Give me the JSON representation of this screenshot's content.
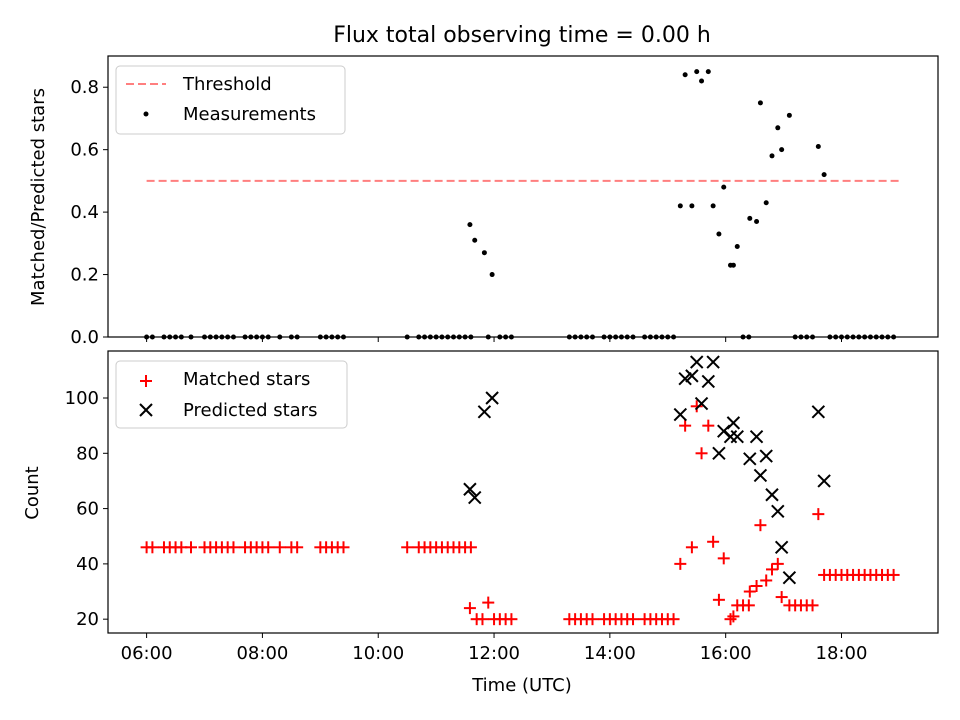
{
  "chart_data": [
    {
      "type": "scatter",
      "title": "Flux total observing time = 0.00 h",
      "xlabel": "",
      "ylabel": "Matched/Predicted stars",
      "xlim": [
        "05:20",
        "19:40"
      ],
      "ylim": [
        0,
        0.9
      ],
      "x_ticks": [
        "06:00",
        "08:00",
        "10:00",
        "12:00",
        "14:00",
        "16:00",
        "18:00"
      ],
      "y_ticks": [
        0,
        0.2,
        0.4,
        0.6,
        0.8
      ],
      "y_tick_labels": [
        "0.0",
        "0.2",
        "0.4",
        "0.6",
        "0.8"
      ],
      "legend_position": "top-left",
      "threshold": {
        "name": "Threshold",
        "value": 0.5,
        "x_range": [
          "06:00",
          "19:00"
        ],
        "color": "#ff7f7f",
        "style": "dashed"
      },
      "series": [
        {
          "name": "Measurements",
          "marker": "dot",
          "color": "#000000",
          "points": [
            [
              "06:00",
              0
            ],
            [
              "06:06",
              0
            ],
            [
              "06:18",
              0
            ],
            [
              "06:24",
              0
            ],
            [
              "06:30",
              0
            ],
            [
              "06:36",
              0
            ],
            [
              "06:46",
              0
            ],
            [
              "07:00",
              0
            ],
            [
              "07:06",
              0
            ],
            [
              "07:12",
              0
            ],
            [
              "07:18",
              0
            ],
            [
              "07:24",
              0
            ],
            [
              "07:30",
              0
            ],
            [
              "07:42",
              0
            ],
            [
              "07:48",
              0
            ],
            [
              "07:54",
              0
            ],
            [
              "08:00",
              0
            ],
            [
              "08:06",
              0
            ],
            [
              "08:18",
              0
            ],
            [
              "08:30",
              0
            ],
            [
              "08:36",
              0
            ],
            [
              "09:00",
              0
            ],
            [
              "09:06",
              0
            ],
            [
              "09:12",
              0
            ],
            [
              "09:18",
              0
            ],
            [
              "09:24",
              0
            ],
            [
              "10:30",
              0
            ],
            [
              "10:42",
              0
            ],
            [
              "10:48",
              0
            ],
            [
              "10:54",
              0
            ],
            [
              "11:00",
              0
            ],
            [
              "11:06",
              0
            ],
            [
              "11:12",
              0
            ],
            [
              "11:18",
              0
            ],
            [
              "11:24",
              0
            ],
            [
              "11:30",
              0
            ],
            [
              "11:36",
              0
            ],
            [
              "11:54",
              0
            ],
            [
              "12:06",
              0
            ],
            [
              "12:12",
              0
            ],
            [
              "12:18",
              0
            ],
            [
              "11:35",
              0.36
            ],
            [
              "11:40",
              0.31
            ],
            [
              "11:50",
              0.27
            ],
            [
              "11:58",
              0.2
            ],
            [
              "13:18",
              0
            ],
            [
              "13:24",
              0
            ],
            [
              "13:30",
              0
            ],
            [
              "13:36",
              0
            ],
            [
              "13:42",
              0
            ],
            [
              "13:54",
              0
            ],
            [
              "14:00",
              0
            ],
            [
              "14:06",
              0
            ],
            [
              "14:12",
              0
            ],
            [
              "14:18",
              0
            ],
            [
              "14:24",
              0
            ],
            [
              "14:36",
              0
            ],
            [
              "14:42",
              0
            ],
            [
              "14:48",
              0
            ],
            [
              "14:54",
              0
            ],
            [
              "15:00",
              0
            ],
            [
              "15:06",
              0
            ],
            [
              "15:13",
              0.42
            ],
            [
              "15:18",
              0.84
            ],
            [
              "15:25",
              0.42
            ],
            [
              "15:30",
              0.85
            ],
            [
              "15:35",
              0.82
            ],
            [
              "15:42",
              0.85
            ],
            [
              "15:47",
              0.42
            ],
            [
              "15:53",
              0.33
            ],
            [
              "15:58",
              0.48
            ],
            [
              "16:05",
              0.23
            ],
            [
              "16:08",
              0.23
            ],
            [
              "16:12",
              0.29
            ],
            [
              "16:18",
              0
            ],
            [
              "16:24",
              0
            ],
            [
              "16:25",
              0.38
            ],
            [
              "16:32",
              0.37
            ],
            [
              "16:36",
              0.75
            ],
            [
              "16:42",
              0.43
            ],
            [
              "16:48",
              0.58
            ],
            [
              "16:54",
              0.67
            ],
            [
              "16:58",
              0.6
            ],
            [
              "17:06",
              0.71
            ],
            [
              "17:12",
              0
            ],
            [
              "17:18",
              0
            ],
            [
              "17:24",
              0
            ],
            [
              "17:30",
              0
            ],
            [
              "17:36",
              0.61
            ],
            [
              "17:42",
              0.52
            ],
            [
              "17:48",
              0
            ],
            [
              "17:54",
              0
            ],
            [
              "18:00",
              0
            ],
            [
              "18:06",
              0
            ],
            [
              "18:12",
              0
            ],
            [
              "18:18",
              0
            ],
            [
              "18:24",
              0
            ],
            [
              "18:30",
              0
            ],
            [
              "18:36",
              0
            ],
            [
              "18:42",
              0
            ],
            [
              "18:48",
              0
            ],
            [
              "18:54",
              0
            ]
          ]
        }
      ]
    },
    {
      "type": "scatter",
      "title": "",
      "xlabel": "Time (UTC)",
      "ylabel": "Count",
      "xlim": [
        "05:20",
        "19:40"
      ],
      "ylim": [
        15,
        117
      ],
      "x_ticks": [
        "06:00",
        "08:00",
        "10:00",
        "12:00",
        "14:00",
        "16:00",
        "18:00"
      ],
      "y_ticks": [
        20,
        40,
        60,
        80,
        100
      ],
      "legend_position": "top-left",
      "series": [
        {
          "name": "Matched stars",
          "marker": "plus",
          "color": "#ff0000",
          "points": [
            [
              "06:00",
              46
            ],
            [
              "06:06",
              46
            ],
            [
              "06:18",
              46
            ],
            [
              "06:24",
              46
            ],
            [
              "06:30",
              46
            ],
            [
              "06:36",
              46
            ],
            [
              "06:46",
              46
            ],
            [
              "07:00",
              46
            ],
            [
              "07:06",
              46
            ],
            [
              "07:12",
              46
            ],
            [
              "07:18",
              46
            ],
            [
              "07:24",
              46
            ],
            [
              "07:30",
              46
            ],
            [
              "07:42",
              46
            ],
            [
              "07:48",
              46
            ],
            [
              "07:54",
              46
            ],
            [
              "08:00",
              46
            ],
            [
              "08:06",
              46
            ],
            [
              "08:18",
              46
            ],
            [
              "08:30",
              46
            ],
            [
              "08:36",
              46
            ],
            [
              "09:00",
              46
            ],
            [
              "09:06",
              46
            ],
            [
              "09:12",
              46
            ],
            [
              "09:18",
              46
            ],
            [
              "09:24",
              46
            ],
            [
              "10:30",
              46
            ],
            [
              "10:42",
              46
            ],
            [
              "10:48",
              46
            ],
            [
              "10:54",
              46
            ],
            [
              "11:00",
              46
            ],
            [
              "11:06",
              46
            ],
            [
              "11:12",
              46
            ],
            [
              "11:18",
              46
            ],
            [
              "11:24",
              46
            ],
            [
              "11:30",
              46
            ],
            [
              "11:36",
              46
            ],
            [
              "11:35",
              24
            ],
            [
              "11:42",
              20
            ],
            [
              "11:48",
              20
            ],
            [
              "11:54",
              26
            ],
            [
              "12:00",
              20
            ],
            [
              "12:06",
              20
            ],
            [
              "12:12",
              20
            ],
            [
              "12:18",
              20
            ],
            [
              "13:18",
              20
            ],
            [
              "13:24",
              20
            ],
            [
              "13:30",
              20
            ],
            [
              "13:36",
              20
            ],
            [
              "13:42",
              20
            ],
            [
              "13:54",
              20
            ],
            [
              "14:00",
              20
            ],
            [
              "14:06",
              20
            ],
            [
              "14:12",
              20
            ],
            [
              "14:18",
              20
            ],
            [
              "14:24",
              20
            ],
            [
              "14:36",
              20
            ],
            [
              "14:42",
              20
            ],
            [
              "14:48",
              20
            ],
            [
              "14:54",
              20
            ],
            [
              "15:00",
              20
            ],
            [
              "15:06",
              20
            ],
            [
              "15:13",
              40
            ],
            [
              "15:18",
              90
            ],
            [
              "15:25",
              46
            ],
            [
              "15:30",
              97
            ],
            [
              "15:35",
              80
            ],
            [
              "15:42",
              90
            ],
            [
              "15:47",
              48
            ],
            [
              "15:53",
              27
            ],
            [
              "15:58",
              42
            ],
            [
              "16:05",
              20
            ],
            [
              "16:08",
              21
            ],
            [
              "16:12",
              25
            ],
            [
              "16:18",
              25
            ],
            [
              "16:24",
              25
            ],
            [
              "16:25",
              30
            ],
            [
              "16:32",
              32
            ],
            [
              "16:36",
              54
            ],
            [
              "16:42",
              34
            ],
            [
              "16:48",
              38
            ],
            [
              "16:54",
              40
            ],
            [
              "16:58",
              28
            ],
            [
              "17:06",
              25
            ],
            [
              "17:12",
              25
            ],
            [
              "17:18",
              25
            ],
            [
              "17:24",
              25
            ],
            [
              "17:30",
              25
            ],
            [
              "17:36",
              58
            ],
            [
              "17:42",
              36
            ],
            [
              "17:48",
              36
            ],
            [
              "17:54",
              36
            ],
            [
              "18:00",
              36
            ],
            [
              "18:06",
              36
            ],
            [
              "18:12",
              36
            ],
            [
              "18:18",
              36
            ],
            [
              "18:24",
              36
            ],
            [
              "18:30",
              36
            ],
            [
              "18:36",
              36
            ],
            [
              "18:42",
              36
            ],
            [
              "18:48",
              36
            ],
            [
              "18:54",
              36
            ]
          ]
        },
        {
          "name": "Predicted stars",
          "marker": "x",
          "color": "#000000",
          "points": [
            [
              "11:35",
              67
            ],
            [
              "11:40",
              64
            ],
            [
              "11:50",
              95
            ],
            [
              "11:58",
              100
            ],
            [
              "15:13",
              94
            ],
            [
              "15:18",
              107
            ],
            [
              "15:25",
              108
            ],
            [
              "15:30",
              113
            ],
            [
              "15:35",
              98
            ],
            [
              "15:42",
              106
            ],
            [
              "15:47",
              113
            ],
            [
              "15:53",
              80
            ],
            [
              "15:58",
              88
            ],
            [
              "16:05",
              86
            ],
            [
              "16:08",
              91
            ],
            [
              "16:12",
              86
            ],
            [
              "16:25",
              78
            ],
            [
              "16:32",
              86
            ],
            [
              "16:36",
              72
            ],
            [
              "16:42",
              79
            ],
            [
              "16:48",
              65
            ],
            [
              "16:54",
              59
            ],
            [
              "16:58",
              46
            ],
            [
              "17:06",
              35
            ],
            [
              "17:36",
              95
            ],
            [
              "17:42",
              70
            ]
          ]
        }
      ]
    }
  ]
}
